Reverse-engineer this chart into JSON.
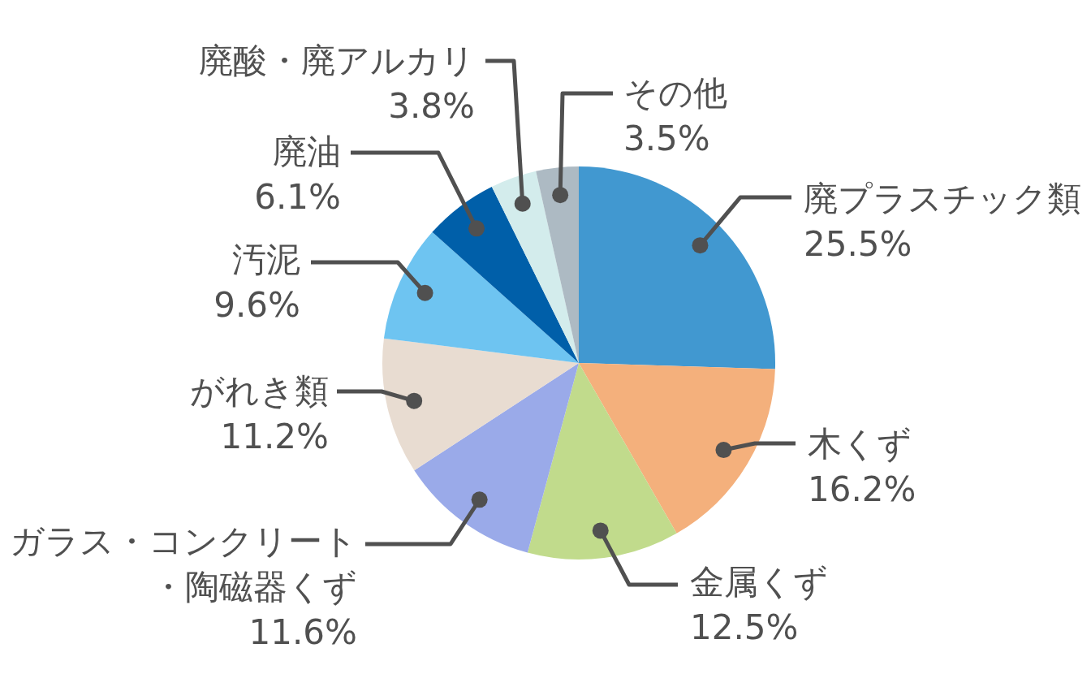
{
  "chart_data": {
    "type": "pie",
    "categories": [
      "廃プラスチック類",
      "木くず",
      "金属くず",
      "ガラス・コンクリート・陶磁器くず",
      "がれき類",
      "汚泥",
      "廃油",
      "廃酸・廃アルカリ",
      "その他"
    ],
    "values": [
      25.5,
      16.2,
      12.5,
      11.6,
      11.2,
      9.6,
      6.1,
      3.8,
      3.5
    ],
    "colors": [
      "#4198d0",
      "#f4b07c",
      "#c1db8c",
      "#9aaae9",
      "#e8dcd1",
      "#6ec4f1",
      "#005fa9",
      "#d3ecec",
      "#adbac3"
    ],
    "value_labels": [
      "25.5%",
      "16.2%",
      "12.5%",
      "11.6%",
      "11.2%",
      "9.6%",
      "6.1%",
      "3.8%",
      "3.5%"
    ],
    "legend": false
  }
}
